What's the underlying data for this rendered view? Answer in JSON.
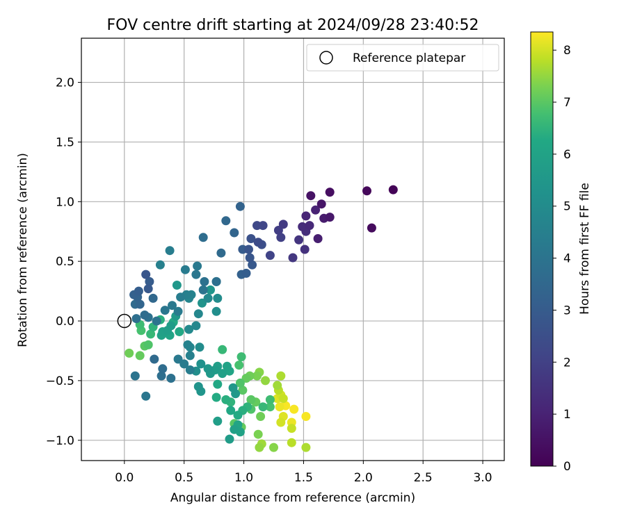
{
  "chart_data": {
    "type": "scatter",
    "title": "FOV centre drift starting at 2024/09/28 23:40:52",
    "xlabel": "Angular distance from reference (arcmin)",
    "ylabel": "Rotation from reference (arcmin)",
    "xlim": [
      -0.36,
      3.18
    ],
    "ylim": [
      -1.17,
      2.37
    ],
    "xticks": [
      "0.0",
      "0.5",
      "1.0",
      "1.5",
      "2.0",
      "2.5",
      "3.0"
    ],
    "yticks": [
      "−1.0",
      "−0.5",
      "0.0",
      "0.5",
      "1.0",
      "1.5",
      "2.0"
    ],
    "grid": true,
    "legend": {
      "position": "top-right",
      "entries": [
        "Reference platepar"
      ]
    },
    "reference_point": {
      "x": 0.0,
      "y": 0.0
    },
    "colorbar": {
      "label": "Hours from first FF file",
      "range": [
        0,
        8.35
      ],
      "ticks": [
        "0",
        "1",
        "2",
        "3",
        "4",
        "5",
        "6",
        "7",
        "8"
      ],
      "colormap": "viridis"
    },
    "points": [
      [
        2.25,
        1.1,
        0.1
      ],
      [
        2.03,
        1.09,
        0.2
      ],
      [
        2.07,
        0.78,
        0.3
      ],
      [
        1.72,
        1.08,
        0.4
      ],
      [
        1.56,
        1.05,
        0.5
      ],
      [
        1.65,
        0.98,
        0.6
      ],
      [
        1.72,
        0.87,
        0.7
      ],
      [
        1.67,
        0.86,
        0.8
      ],
      [
        1.62,
        0.69,
        0.9
      ],
      [
        1.6,
        0.93,
        1.0
      ],
      [
        1.52,
        0.88,
        1.1
      ],
      [
        1.55,
        0.8,
        1.2
      ],
      [
        1.49,
        0.79,
        1.3
      ],
      [
        1.52,
        0.75,
        1.4
      ],
      [
        1.51,
        0.6,
        1.5
      ],
      [
        1.46,
        0.68,
        1.6
      ],
      [
        1.41,
        0.53,
        1.7
      ],
      [
        1.33,
        0.81,
        1.8
      ],
      [
        1.29,
        0.76,
        1.9
      ],
      [
        1.31,
        0.7,
        2.0
      ],
      [
        1.22,
        0.55,
        2.1
      ],
      [
        1.16,
        0.8,
        2.2
      ],
      [
        1.11,
        0.8,
        2.3
      ],
      [
        1.12,
        0.66,
        2.4
      ],
      [
        1.15,
        0.64,
        2.5
      ],
      [
        1.06,
        0.69,
        2.6
      ],
      [
        1.04,
        0.6,
        2.7
      ],
      [
        1.05,
        0.53,
        2.8
      ],
      [
        1.07,
        0.47,
        2.9
      ],
      [
        0.99,
        0.6,
        3.0
      ],
      [
        1.02,
        0.4,
        3.1
      ],
      [
        0.98,
        0.39,
        3.2
      ],
      [
        0.97,
        0.96,
        3.3
      ],
      [
        0.92,
        0.74,
        3.4
      ],
      [
        0.85,
        0.84,
        3.5
      ],
      [
        0.81,
        0.57,
        3.6
      ],
      [
        0.66,
        0.7,
        3.7
      ],
      [
        0.77,
        0.33,
        3.8
      ],
      [
        0.67,
        0.33,
        3.9
      ],
      [
        0.66,
        0.26,
        4.0
      ],
      [
        0.6,
        0.39,
        4.1
      ],
      [
        0.61,
        0.46,
        4.2
      ],
      [
        0.51,
        0.43,
        4.3
      ],
      [
        0.38,
        0.59,
        4.4
      ],
      [
        0.3,
        0.47,
        4.5
      ]
    ],
    "points_extra": [
      [
        0.18,
        0.39,
        2.8
      ],
      [
        0.2,
        0.27,
        2.9
      ],
      [
        0.21,
        0.33,
        3.0
      ],
      [
        0.12,
        0.25,
        3.1
      ],
      [
        0.08,
        0.22,
        3.2
      ],
      [
        0.11,
        0.2,
        3.3
      ],
      [
        0.13,
        0.14,
        3.4
      ],
      [
        0.24,
        0.19,
        3.5
      ],
      [
        0.09,
        0.14,
        3.6
      ],
      [
        0.17,
        0.05,
        3.7
      ],
      [
        0.1,
        0.02,
        3.8
      ],
      [
        0.2,
        0.03,
        3.9
      ],
      [
        0.27,
        0.0,
        4.0
      ],
      [
        0.34,
        0.09,
        4.1
      ],
      [
        0.4,
        0.13,
        4.2
      ],
      [
        0.45,
        0.08,
        4.3
      ],
      [
        0.47,
        0.2,
        4.4
      ],
      [
        0.52,
        0.22,
        4.5
      ],
      [
        0.56,
        0.22,
        4.6
      ],
      [
        0.54,
        0.19,
        4.7
      ],
      [
        0.62,
        0.06,
        4.8
      ],
      [
        0.7,
        0.19,
        4.9
      ],
      [
        0.78,
        0.19,
        5.0
      ],
      [
        0.77,
        0.08,
        5.1
      ],
      [
        0.77,
        0.33,
        5.2
      ],
      [
        0.65,
        0.15,
        5.3
      ],
      [
        0.72,
        0.26,
        5.4
      ],
      [
        0.44,
        0.3,
        5.5
      ],
      [
        0.43,
        0.04,
        5.6
      ],
      [
        0.39,
        -0.04,
        5.7
      ],
      [
        0.36,
        -0.08,
        5.8
      ],
      [
        0.32,
        -0.09,
        5.9
      ],
      [
        0.31,
        -0.12,
        6.0
      ],
      [
        0.38,
        -0.12,
        6.1
      ],
      [
        0.46,
        -0.09,
        6.2
      ],
      [
        0.41,
        -0.01,
        6.3
      ],
      [
        0.3,
        0.01,
        6.4
      ],
      [
        0.24,
        -0.05,
        6.5
      ],
      [
        0.22,
        -0.11,
        6.6
      ],
      [
        0.13,
        -0.03,
        6.7
      ],
      [
        0.14,
        -0.08,
        6.8
      ],
      [
        0.2,
        -0.2,
        6.9
      ],
      [
        0.17,
        -0.21,
        7.0
      ],
      [
        0.13,
        -0.29,
        7.1
      ],
      [
        0.04,
        -0.27,
        7.2
      ]
    ],
    "points_lower": [
      [
        0.25,
        -0.32,
        3.6
      ],
      [
        0.32,
        -0.4,
        3.7
      ],
      [
        0.31,
        -0.46,
        3.8
      ],
      [
        0.39,
        -0.48,
        3.9
      ],
      [
        0.09,
        -0.46,
        4.0
      ],
      [
        0.18,
        -0.63,
        4.1
      ],
      [
        0.45,
        -0.32,
        4.2
      ],
      [
        0.5,
        -0.36,
        4.3
      ],
      [
        0.55,
        -0.41,
        4.4
      ],
      [
        0.55,
        -0.29,
        4.5
      ],
      [
        0.53,
        -0.2,
        4.6
      ],
      [
        0.55,
        -0.22,
        4.7
      ],
      [
        0.6,
        -0.04,
        4.8
      ],
      [
        0.54,
        -0.07,
        4.9
      ],
      [
        0.63,
        -0.22,
        5.0
      ],
      [
        0.6,
        -0.42,
        5.1
      ],
      [
        0.64,
        -0.36,
        5.2
      ],
      [
        0.62,
        -0.55,
        5.3
      ],
      [
        0.64,
        -0.59,
        5.4
      ],
      [
        0.7,
        -0.4,
        5.5
      ],
      [
        0.72,
        -0.44,
        5.6
      ],
      [
        0.76,
        -0.41,
        5.7
      ],
      [
        0.78,
        -0.38,
        5.8
      ],
      [
        0.82,
        -0.44,
        5.9
      ],
      [
        0.86,
        -0.38,
        6.0
      ],
      [
        0.88,
        -0.42,
        6.1
      ],
      [
        0.78,
        -0.53,
        6.2
      ],
      [
        0.77,
        -0.64,
        6.3
      ],
      [
        0.85,
        -0.66,
        6.4
      ],
      [
        0.89,
        -0.68,
        6.5
      ],
      [
        0.82,
        -0.24,
        6.6
      ],
      [
        0.98,
        -0.3,
        6.7
      ],
      [
        0.96,
        -0.37,
        6.8
      ],
      [
        0.97,
        -0.52,
        6.9
      ],
      [
        0.99,
        -0.58,
        7.0
      ],
      [
        1.02,
        -0.48,
        7.1
      ],
      [
        1.05,
        -0.46,
        7.2
      ],
      [
        1.11,
        -0.46,
        7.3
      ],
      [
        1.13,
        -0.43,
        7.4
      ],
      [
        1.18,
        -0.5,
        7.5
      ],
      [
        1.28,
        -0.54,
        7.6
      ],
      [
        1.31,
        -0.46,
        7.7
      ],
      [
        1.29,
        -0.58,
        7.8
      ],
      [
        1.33,
        -0.65,
        7.9
      ],
      [
        1.31,
        -0.62,
        8.0
      ],
      [
        1.28,
        -0.65,
        8.1
      ],
      [
        1.3,
        -0.72,
        8.2
      ],
      [
        1.35,
        -0.71,
        8.3
      ],
      [
        1.42,
        -0.74,
        8.3
      ],
      [
        1.52,
        -0.8,
        8.3
      ],
      [
        1.4,
        -0.85,
        8.2
      ],
      [
        1.33,
        -0.8,
        8.1
      ],
      [
        1.31,
        -0.85,
        8.0
      ],
      [
        1.4,
        -0.9,
        7.9
      ],
      [
        1.4,
        -1.02,
        7.8
      ],
      [
        1.52,
        -1.06,
        7.7
      ],
      [
        1.15,
        -1.03,
        7.6
      ],
      [
        1.13,
        -1.06,
        7.5
      ],
      [
        1.25,
        -1.06,
        7.4
      ],
      [
        1.12,
        -0.95,
        7.3
      ],
      [
        1.14,
        -0.8,
        7.2
      ],
      [
        1.1,
        -0.68,
        7.1
      ],
      [
        1.06,
        -0.66,
        7.0
      ],
      [
        1.06,
        -0.74,
        6.9
      ],
      [
        1.22,
        -0.72,
        6.8
      ],
      [
        1.22,
        -0.66,
        6.7
      ],
      [
        1.16,
        -0.72,
        6.6
      ],
      [
        1.03,
        -0.72,
        6.5
      ],
      [
        0.99,
        -0.75,
        6.4
      ],
      [
        0.95,
        -0.79,
        6.3
      ],
      [
        0.89,
        -0.75,
        6.2
      ],
      [
        0.95,
        -0.87,
        6.1
      ],
      [
        0.97,
        -0.93,
        6.0
      ],
      [
        0.92,
        -0.91,
        5.9
      ],
      [
        0.78,
        -0.84,
        5.8
      ],
      [
        0.88,
        -0.99,
        5.7
      ],
      [
        0.93,
        -0.61,
        5.6
      ],
      [
        0.91,
        -0.56,
        5.5
      ],
      [
        0.92,
        -0.86,
        7.0
      ],
      [
        0.98,
        -0.89,
        7.1
      ]
    ]
  }
}
